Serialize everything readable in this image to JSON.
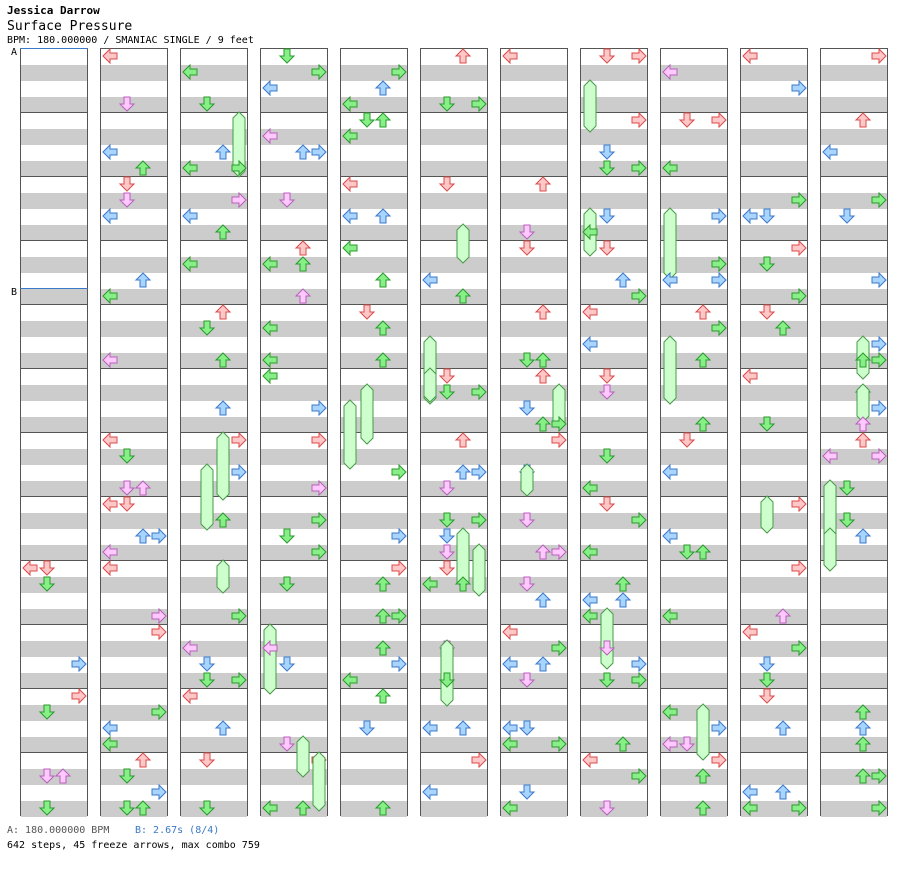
{
  "header": {
    "artist": "Jessica Darrow",
    "title": "Surface Pressure",
    "info": "BPM: 180.000000 / SMANIAC SINGLE / 9 feet"
  },
  "markers": {
    "a_label": "A",
    "b_label": "B"
  },
  "footer": {
    "bpm_change": "A: 180.000000 BPM",
    "stop": "B: 2.67s (8/4)",
    "stats": "642 steps, 45 freeze arrows, max combo 759"
  },
  "colors": {
    "red_fill": "#ffc8c8",
    "red_stroke": "#d84a4a",
    "blue_fill": "#a8d4ff",
    "blue_stroke": "#3a78c8",
    "green_fill": "#88ee88",
    "green_stroke": "#2a9a2a",
    "pink_fill": "#ffc8ff",
    "pink_stroke": "#b860b8",
    "freeze_fill": "#ccffcc",
    "freeze_stroke": "#4a9a4a",
    "band": "#cccccc",
    "marker": "#3a78c8"
  },
  "chart": {
    "columns": 11,
    "measures_per_column": 12,
    "lanes": [
      "left",
      "down",
      "up",
      "right"
    ]
  }
}
